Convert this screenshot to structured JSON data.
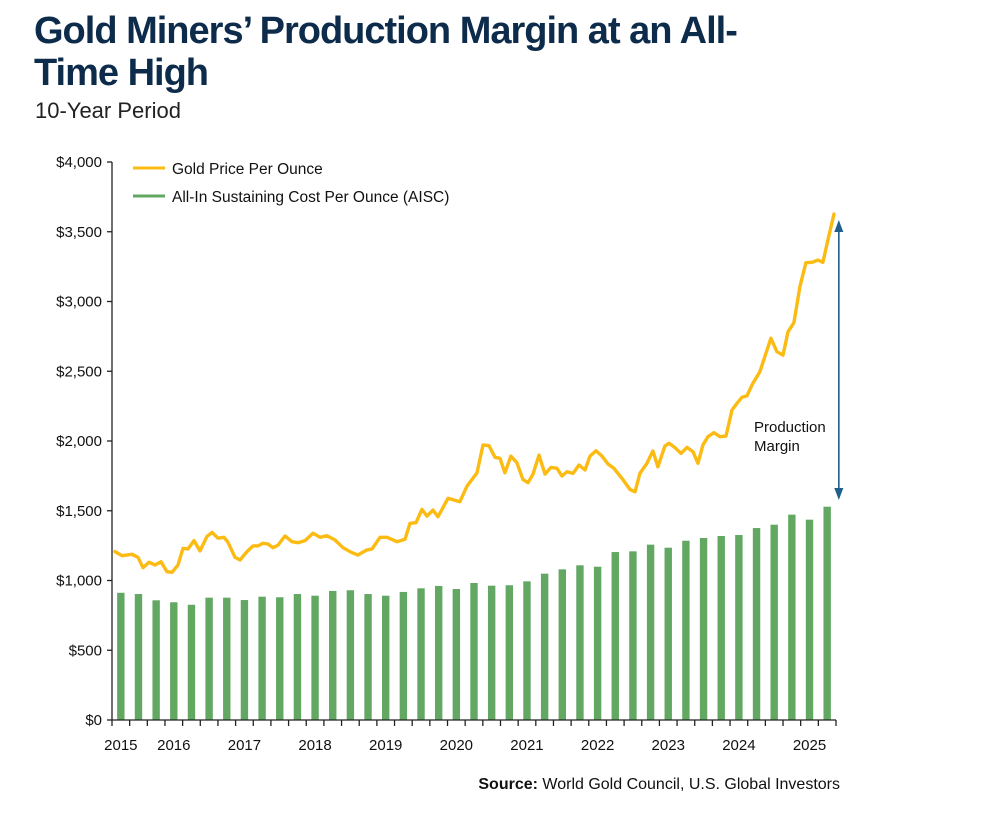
{
  "header": {
    "title": "Gold Miners’ Production Margin at an All-Time High",
    "subtitle": "10-Year Period"
  },
  "source": {
    "label": "Source:",
    "text": " World Gold Council, U.S. Global Investors"
  },
  "colors": {
    "title": "#0d2b4a",
    "gold": "#fbbb13",
    "aisc": "#62a862",
    "arrow": "#1f5f8b",
    "axis": "#222222"
  },
  "chart_data": {
    "type": "bar+line",
    "title": "Gold Miners’ Production Margin at an All-Time High",
    "subtitle": "10-Year Period",
    "xlabel": "",
    "ylabel": "",
    "ylim": [
      0,
      4000
    ],
    "yticks": [
      0,
      500,
      1000,
      1500,
      2000,
      2500,
      3000,
      3500,
      4000
    ],
    "ytick_labels": [
      "$0",
      "$500",
      "$1,000",
      "$1,500",
      "$2,000",
      "$2,500",
      "$3,000",
      "$3,500",
      "$4,000"
    ],
    "xlim": [
      2015.0,
      2025.25
    ],
    "x_year_labels": [
      {
        "label": "2015",
        "quarter_index": 0
      },
      {
        "label": "2016",
        "quarter_index": 3
      },
      {
        "label": "2017",
        "quarter_index": 7
      },
      {
        "label": "2018",
        "quarter_index": 11
      },
      {
        "label": "2019",
        "quarter_index": 15
      },
      {
        "label": "2020",
        "quarter_index": 19
      },
      {
        "label": "2021",
        "quarter_index": 23
      },
      {
        "label": "2022",
        "quarter_index": 27
      },
      {
        "label": "2023",
        "quarter_index": 31
      },
      {
        "label": "2024",
        "quarter_index": 35
      },
      {
        "label": "2025",
        "quarter_index": 39
      }
    ],
    "grid": false,
    "legend_position": "top-left",
    "legend": [
      {
        "name": "Gold Price Per Ounce",
        "type": "line",
        "color": "#fbbb13"
      },
      {
        "name": "All-In Sustaining Cost Per Ounce (AISC)",
        "type": "bar",
        "color": "#62a862"
      }
    ],
    "series": [
      {
        "name": "All-In Sustaining Cost Per Ounce (AISC)",
        "type": "bar",
        "frequency": "quarterly",
        "start": "2015 Q1",
        "values": [
          912,
          903,
          858,
          844,
          826,
          877,
          877,
          860,
          884,
          880,
          903,
          891,
          925,
          930,
          903,
          891,
          918,
          944,
          961,
          939,
          982,
          963,
          966,
          994,
          1049,
          1080,
          1109,
          1099,
          1204,
          1209,
          1257,
          1235,
          1285,
          1305,
          1319,
          1326,
          1376,
          1400,
          1472,
          1436,
          1529
        ]
      },
      {
        "name": "Gold Price Per Ounce",
        "type": "line",
        "x": [
          2015.042,
          2015.142,
          2015.283,
          2015.368,
          2015.439,
          2015.524,
          2015.609,
          2015.694,
          2015.779,
          2015.849,
          2015.934,
          2016.005,
          2016.076,
          2016.161,
          2016.246,
          2016.345,
          2016.416,
          2016.501,
          2016.586,
          2016.642,
          2016.741,
          2016.812,
          2016.911,
          2016.996,
          2017.067,
          2017.138,
          2017.208,
          2017.279,
          2017.35,
          2017.449,
          2017.548,
          2017.633,
          2017.732,
          2017.845,
          2017.945,
          2018.044,
          2018.157,
          2018.27,
          2018.398,
          2018.482,
          2018.61,
          2018.681,
          2018.794,
          2018.893,
          2019.035,
          2019.148,
          2019.219,
          2019.304,
          2019.388,
          2019.459,
          2019.544,
          2019.615,
          2019.757,
          2019.926,
          2020.026,
          2020.167,
          2020.252,
          2020.337,
          2020.422,
          2020.493,
          2020.563,
          2020.648,
          2020.733,
          2020.818,
          2020.889,
          2020.96,
          2021.045,
          2021.13,
          2021.215,
          2021.3,
          2021.37,
          2021.441,
          2021.526,
          2021.611,
          2021.696,
          2021.767,
          2021.852,
          2021.937,
          2022.022,
          2022.106,
          2022.22,
          2022.333,
          2022.404,
          2022.474,
          2022.573,
          2022.658,
          2022.729,
          2022.828,
          2022.885,
          2022.97,
          2023.055,
          2023.14,
          2023.225,
          2023.296,
          2023.366,
          2023.437,
          2023.522,
          2023.607,
          2023.692,
          2023.777,
          2023.848,
          2023.918,
          2023.989,
          2024.074,
          2024.173,
          2024.258,
          2024.329,
          2024.414,
          2024.499,
          2024.57,
          2024.654,
          2024.739,
          2024.824,
          2024.91,
          2024.994,
          2025.064,
          2025.135,
          2025.221
        ],
        "values": [
          1207,
          1178,
          1188,
          1166,
          1092,
          1131,
          1111,
          1135,
          1063,
          1059,
          1111,
          1231,
          1226,
          1286,
          1212,
          1316,
          1345,
          1303,
          1310,
          1274,
          1166,
          1147,
          1207,
          1248,
          1248,
          1267,
          1262,
          1235,
          1254,
          1319,
          1278,
          1271,
          1286,
          1339,
          1310,
          1321,
          1290,
          1235,
          1199,
          1183,
          1219,
          1226,
          1310,
          1310,
          1278,
          1295,
          1410,
          1414,
          1510,
          1462,
          1505,
          1457,
          1589,
          1565,
          1677,
          1772,
          1971,
          1966,
          1883,
          1876,
          1772,
          1892,
          1844,
          1725,
          1701,
          1763,
          1899,
          1763,
          1811,
          1804,
          1749,
          1780,
          1768,
          1828,
          1792,
          1892,
          1930,
          1892,
          1835,
          1804,
          1732,
          1652,
          1636,
          1768,
          1840,
          1928,
          1815,
          1964,
          1984,
          1952,
          1911,
          1954,
          1923,
          1840,
          1971,
          2031,
          2060,
          2031,
          2036,
          2222,
          2270,
          2313,
          2323,
          2414,
          2497,
          2628,
          2736,
          2640,
          2616,
          2783,
          2848,
          3106,
          3278,
          3281,
          3297,
          3281,
          3441,
          3627
        ]
      }
    ],
    "annotations": [
      {
        "text_lines": [
          "Production",
          "Margin"
        ],
        "type": "double-arrow",
        "x": 2025.29,
        "y_from": 1577,
        "y_to": 3584
      }
    ]
  }
}
